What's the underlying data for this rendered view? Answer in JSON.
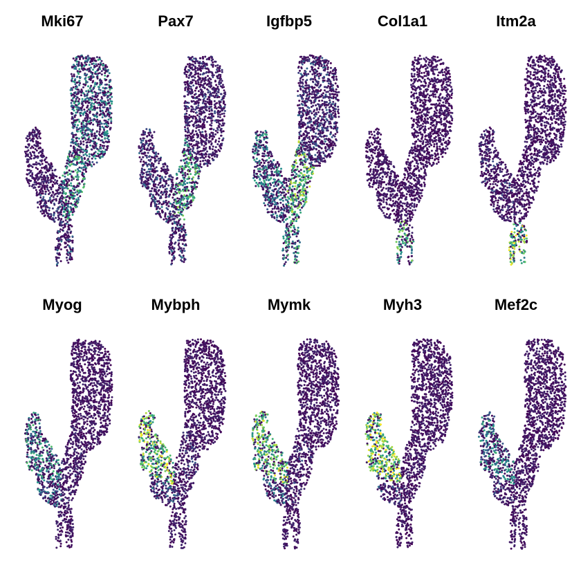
{
  "chart_data": {
    "type": "scatter",
    "layout": "grid 2 rows x 5 columns of UMAP feature plots",
    "grid": false,
    "axes_visible": false,
    "legend": "none",
    "colormap": "viridis",
    "colors": {
      "low": "#440154",
      "mid": "#21918c",
      "high": "#fde725",
      "background": "#ffffff"
    },
    "panels": [
      {
        "title": "Mki67",
        "expression_level": {
          "upper_arm": 0.45,
          "stem": 0.55,
          "left_lobe": 0.15,
          "lower_left": 0.25,
          "legs": 0.3
        }
      },
      {
        "title": "Pax7",
        "expression_level": {
          "upper_arm": 0.2,
          "stem": 0.6,
          "left_lobe": 0.25,
          "lower_left": 0.35,
          "legs": 0.3
        }
      },
      {
        "title": "Igfbp5",
        "expression_level": {
          "upper_arm": 0.25,
          "stem": 0.7,
          "left_lobe": 0.45,
          "lower_left": 0.4,
          "legs": 0.55
        }
      },
      {
        "title": "Col1a1",
        "expression_level": {
          "upper_arm": 0.05,
          "stem": 0.08,
          "left_lobe": 0.1,
          "lower_left": 0.08,
          "legs": 0.6
        }
      },
      {
        "title": "Itm2a",
        "expression_level": {
          "upper_arm": 0.02,
          "stem": 0.05,
          "left_lobe": 0.2,
          "lower_left": 0.15,
          "legs": 0.75
        }
      },
      {
        "title": "Myog",
        "expression_level": {
          "upper_arm": 0.02,
          "stem": 0.15,
          "left_lobe": 0.5,
          "lower_left": 0.4,
          "legs": 0.1
        }
      },
      {
        "title": "Mybph",
        "expression_level": {
          "upper_arm": 0.03,
          "stem": 0.2,
          "left_lobe": 0.75,
          "lower_left": 0.35,
          "legs": 0.1
        }
      },
      {
        "title": "Mymk",
        "expression_level": {
          "upper_arm": 0.03,
          "stem": 0.2,
          "left_lobe": 0.7,
          "lower_left": 0.35,
          "legs": 0.1
        }
      },
      {
        "title": "Myh3",
        "expression_level": {
          "upper_arm": 0.02,
          "stem": 0.1,
          "left_lobe": 0.8,
          "lower_left": 0.25,
          "legs": 0.08
        }
      },
      {
        "title": "Mef2c",
        "expression_level": {
          "upper_arm": 0.02,
          "stem": 0.08,
          "left_lobe": 0.45,
          "lower_left": 0.2,
          "legs": 0.08
        }
      }
    ]
  }
}
